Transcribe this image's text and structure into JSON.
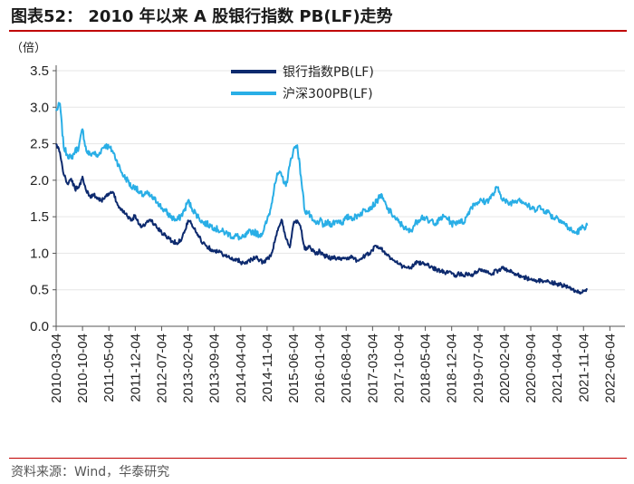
{
  "header": {
    "title": "图表52： 2010 年以来 A 股银行指数 PB(LF)走势"
  },
  "footer": {
    "source": "资料来源：Wind，华泰研究"
  },
  "colors": {
    "bank": "#0d2a6e",
    "hs300": "#29aee6",
    "rule": "#c00000"
  },
  "chart_data": {
    "type": "line",
    "title": "2010 年以来 A 股银行指数 PB(LF)走势",
    "ylabel": "（倍）",
    "ylim": [
      0.0,
      3.5
    ],
    "yticks": [
      "0.0",
      "0.5",
      "1.0",
      "1.5",
      "2.0",
      "2.5",
      "3.0",
      "3.5"
    ],
    "xticks": [
      "2010-03-04",
      "2010-10-04",
      "2011-05-04",
      "2011-12-04",
      "2012-07-04",
      "2013-02-04",
      "2013-09-04",
      "2014-04-04",
      "2014-11-04",
      "2015-06-04",
      "2016-01-04",
      "2016-08-04",
      "2017-03-04",
      "2017-10-04",
      "2018-05-04",
      "2018-12-04",
      "2019-07-04",
      "2020-02-04",
      "2020-09-04",
      "2021-04-04",
      "2021-11-04",
      "2022-06-04"
    ],
    "x_range_months": [
      0,
      151
    ],
    "legend": [
      "银行指数PB(LF)",
      "沪深300PB(LF)"
    ],
    "series": [
      {
        "name": "银行指数PB(LF)",
        "points": [
          [
            0,
            2.5
          ],
          [
            1,
            2.38
          ],
          [
            2,
            2.08
          ],
          [
            3,
            1.95
          ],
          [
            4,
            2.02
          ],
          [
            5,
            1.88
          ],
          [
            6,
            1.9
          ],
          [
            7,
            2.05
          ],
          [
            8,
            1.85
          ],
          [
            9,
            1.78
          ],
          [
            10,
            1.8
          ],
          [
            11,
            1.76
          ],
          [
            12,
            1.72
          ],
          [
            13,
            1.78
          ],
          [
            14,
            1.8
          ],
          [
            15,
            1.84
          ],
          [
            16,
            1.7
          ],
          [
            17,
            1.62
          ],
          [
            18,
            1.58
          ],
          [
            19,
            1.5
          ],
          [
            20,
            1.46
          ],
          [
            21,
            1.52
          ],
          [
            22,
            1.4
          ],
          [
            23,
            1.37
          ],
          [
            24,
            1.42
          ],
          [
            25,
            1.46
          ],
          [
            26,
            1.4
          ],
          [
            27,
            1.34
          ],
          [
            28,
            1.28
          ],
          [
            29,
            1.24
          ],
          [
            30,
            1.2
          ],
          [
            31,
            1.16
          ],
          [
            32,
            1.14
          ],
          [
            33,
            1.18
          ],
          [
            34,
            1.28
          ],
          [
            35,
            1.45
          ],
          [
            36,
            1.4
          ],
          [
            37,
            1.3
          ],
          [
            38,
            1.22
          ],
          [
            39,
            1.14
          ],
          [
            40,
            1.1
          ],
          [
            41,
            1.06
          ],
          [
            42,
            1.04
          ],
          [
            43,
            1.02
          ],
          [
            44,
            1.0
          ],
          [
            45,
            0.96
          ],
          [
            46,
            0.94
          ],
          [
            47,
            0.9
          ],
          [
            48,
            0.92
          ],
          [
            49,
            0.88
          ],
          [
            50,
            0.86
          ],
          [
            51,
            0.9
          ],
          [
            52,
            0.92
          ],
          [
            53,
            0.94
          ],
          [
            54,
            0.9
          ],
          [
            55,
            0.88
          ],
          [
            56,
            0.92
          ],
          [
            57,
            0.96
          ],
          [
            58,
            1.15
          ],
          [
            59,
            1.35
          ],
          [
            60,
            1.45
          ],
          [
            61,
            1.2
          ],
          [
            62,
            1.08
          ],
          [
            63,
            1.4
          ],
          [
            64,
            1.45
          ],
          [
            65,
            1.33
          ],
          [
            66,
            1.05
          ],
          [
            67,
            1.1
          ],
          [
            68,
            1.05
          ],
          [
            69,
            1.0
          ],
          [
            70,
            1.03
          ],
          [
            71,
            0.97
          ],
          [
            72,
            0.95
          ],
          [
            73,
            0.93
          ],
          [
            74,
            0.95
          ],
          [
            75,
            0.92
          ],
          [
            76,
            0.94
          ],
          [
            77,
            0.93
          ],
          [
            78,
            0.95
          ],
          [
            79,
            0.92
          ],
          [
            80,
            0.9
          ],
          [
            81,
            0.93
          ],
          [
            82,
            0.96
          ],
          [
            83,
            1.0
          ],
          [
            84,
            1.05
          ],
          [
            85,
            1.1
          ],
          [
            86,
            1.08
          ],
          [
            87,
            1.02
          ],
          [
            88,
            0.98
          ],
          [
            89,
            0.92
          ],
          [
            90,
            0.88
          ],
          [
            91,
            0.85
          ],
          [
            92,
            0.82
          ],
          [
            93,
            0.8
          ],
          [
            94,
            0.8
          ],
          [
            95,
            0.84
          ],
          [
            96,
            0.88
          ],
          [
            97,
            0.86
          ],
          [
            98,
            0.85
          ],
          [
            99,
            0.82
          ],
          [
            100,
            0.8
          ],
          [
            101,
            0.78
          ],
          [
            102,
            0.76
          ],
          [
            103,
            0.74
          ],
          [
            104,
            0.73
          ],
          [
            105,
            0.72
          ],
          [
            106,
            0.7
          ],
          [
            107,
            0.72
          ],
          [
            108,
            0.7
          ],
          [
            109,
            0.72
          ],
          [
            110,
            0.7
          ],
          [
            111,
            0.72
          ],
          [
            112,
            0.75
          ],
          [
            113,
            0.78
          ],
          [
            114,
            0.74
          ],
          [
            115,
            0.72
          ],
          [
            116,
            0.73
          ],
          [
            117,
            0.76
          ],
          [
            118,
            0.78
          ],
          [
            119,
            0.8
          ],
          [
            120,
            0.76
          ],
          [
            121,
            0.74
          ],
          [
            122,
            0.72
          ],
          [
            123,
            0.7
          ],
          [
            124,
            0.68
          ],
          [
            125,
            0.66
          ],
          [
            126,
            0.64
          ],
          [
            127,
            0.62
          ],
          [
            128,
            0.62
          ],
          [
            129,
            0.63
          ],
          [
            130,
            0.61
          ],
          [
            131,
            0.6
          ],
          [
            132,
            0.6
          ],
          [
            133,
            0.58
          ],
          [
            134,
            0.57
          ],
          [
            135,
            0.55
          ],
          [
            136,
            0.53
          ],
          [
            137,
            0.5
          ],
          [
            138,
            0.48
          ],
          [
            139,
            0.47
          ],
          [
            140,
            0.48
          ],
          [
            141,
            0.5
          ]
        ]
      },
      {
        "name": "沪深300PB(LF)",
        "points": [
          [
            0,
            2.95
          ],
          [
            1,
            3.05
          ],
          [
            2,
            2.45
          ],
          [
            3,
            2.35
          ],
          [
            4,
            2.3
          ],
          [
            5,
            2.4
          ],
          [
            6,
            2.45
          ],
          [
            7,
            2.7
          ],
          [
            8,
            2.4
          ],
          [
            9,
            2.35
          ],
          [
            10,
            2.38
          ],
          [
            11,
            2.32
          ],
          [
            12,
            2.42
          ],
          [
            13,
            2.48
          ],
          [
            14,
            2.45
          ],
          [
            15,
            2.4
          ],
          [
            16,
            2.28
          ],
          [
            17,
            2.15
          ],
          [
            18,
            2.05
          ],
          [
            19,
            2.0
          ],
          [
            20,
            1.9
          ],
          [
            21,
            1.92
          ],
          [
            22,
            1.82
          ],
          [
            23,
            1.8
          ],
          [
            24,
            1.82
          ],
          [
            25,
            1.78
          ],
          [
            26,
            1.74
          ],
          [
            27,
            1.7
          ],
          [
            28,
            1.62
          ],
          [
            29,
            1.58
          ],
          [
            30,
            1.52
          ],
          [
            31,
            1.48
          ],
          [
            32,
            1.45
          ],
          [
            33,
            1.5
          ],
          [
            34,
            1.58
          ],
          [
            35,
            1.72
          ],
          [
            36,
            1.62
          ],
          [
            37,
            1.55
          ],
          [
            38,
            1.48
          ],
          [
            39,
            1.42
          ],
          [
            40,
            1.4
          ],
          [
            41,
            1.38
          ],
          [
            42,
            1.35
          ],
          [
            43,
            1.32
          ],
          [
            44,
            1.3
          ],
          [
            45,
            1.28
          ],
          [
            46,
            1.26
          ],
          [
            47,
            1.22
          ],
          [
            48,
            1.24
          ],
          [
            49,
            1.2
          ],
          [
            50,
            1.22
          ],
          [
            51,
            1.28
          ],
          [
            52,
            1.3
          ],
          [
            53,
            1.28
          ],
          [
            54,
            1.25
          ],
          [
            55,
            1.3
          ],
          [
            56,
            1.45
          ],
          [
            57,
            1.62
          ],
          [
            58,
            1.95
          ],
          [
            59,
            2.1
          ],
          [
            60,
            2.05
          ],
          [
            61,
            1.92
          ],
          [
            62,
            2.2
          ],
          [
            63,
            2.42
          ],
          [
            64,
            2.48
          ],
          [
            65,
            2.05
          ],
          [
            66,
            1.58
          ],
          [
            67,
            1.55
          ],
          [
            68,
            1.45
          ],
          [
            69,
            1.4
          ],
          [
            70,
            1.45
          ],
          [
            71,
            1.38
          ],
          [
            72,
            1.42
          ],
          [
            73,
            1.4
          ],
          [
            74,
            1.43
          ],
          [
            75,
            1.45
          ],
          [
            76,
            1.42
          ],
          [
            77,
            1.48
          ],
          [
            78,
            1.5
          ],
          [
            79,
            1.48
          ],
          [
            80,
            1.52
          ],
          [
            81,
            1.55
          ],
          [
            82,
            1.6
          ],
          [
            83,
            1.62
          ],
          [
            84,
            1.65
          ],
          [
            85,
            1.7
          ],
          [
            86,
            1.8
          ],
          [
            87,
            1.72
          ],
          [
            88,
            1.6
          ],
          [
            89,
            1.55
          ],
          [
            90,
            1.48
          ],
          [
            91,
            1.42
          ],
          [
            92,
            1.38
          ],
          [
            93,
            1.32
          ],
          [
            94,
            1.3
          ],
          [
            95,
            1.38
          ],
          [
            96,
            1.45
          ],
          [
            97,
            1.5
          ],
          [
            98,
            1.48
          ],
          [
            99,
            1.42
          ],
          [
            100,
            1.45
          ],
          [
            101,
            1.4
          ],
          [
            102,
            1.48
          ],
          [
            103,
            1.5
          ],
          [
            104,
            1.48
          ],
          [
            105,
            1.4
          ],
          [
            106,
            1.42
          ],
          [
            107,
            1.45
          ],
          [
            108,
            1.42
          ],
          [
            109,
            1.5
          ],
          [
            110,
            1.62
          ],
          [
            111,
            1.68
          ],
          [
            112,
            1.7
          ],
          [
            113,
            1.72
          ],
          [
            114,
            1.7
          ],
          [
            115,
            1.75
          ],
          [
            116,
            1.8
          ],
          [
            117,
            1.9
          ],
          [
            118,
            1.8
          ],
          [
            119,
            1.72
          ],
          [
            120,
            1.68
          ],
          [
            121,
            1.7
          ],
          [
            122,
            1.72
          ],
          [
            123,
            1.75
          ],
          [
            124,
            1.7
          ],
          [
            125,
            1.66
          ],
          [
            126,
            1.62
          ],
          [
            127,
            1.6
          ],
          [
            128,
            1.64
          ],
          [
            129,
            1.6
          ],
          [
            130,
            1.58
          ],
          [
            131,
            1.55
          ],
          [
            132,
            1.48
          ],
          [
            133,
            1.5
          ],
          [
            134,
            1.45
          ],
          [
            135,
            1.4
          ],
          [
            136,
            1.35
          ],
          [
            137,
            1.3
          ],
          [
            138,
            1.28
          ],
          [
            139,
            1.32
          ],
          [
            140,
            1.36
          ],
          [
            141,
            1.38
          ]
        ]
      }
    ]
  }
}
